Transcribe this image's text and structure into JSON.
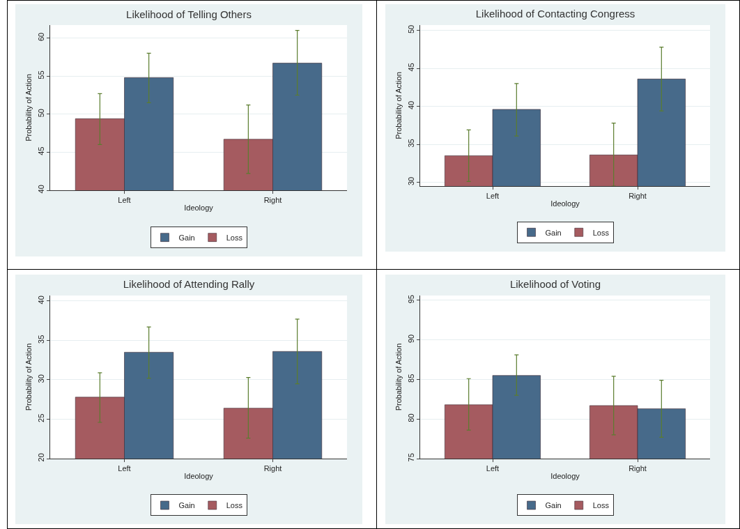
{
  "chart_data": [
    {
      "type": "bar",
      "title": "Likelihood of Telling Others",
      "xlabel": "Ideology",
      "ylabel": "Probability of Action",
      "categories": [
        "Left",
        "Right"
      ],
      "ylim": [
        40,
        61.7
      ],
      "yticks": [
        40,
        45,
        50,
        55,
        60
      ],
      "grid": "y",
      "legend": "bottom",
      "series": [
        {
          "name": "Loss",
          "color": "#a55b60",
          "values": [
            49.4,
            46.7
          ],
          "errors": [
            [
              46.0,
              52.7
            ],
            [
              42.2,
              51.2
            ]
          ]
        },
        {
          "name": "Gain",
          "color": "#476a8a",
          "values": [
            54.8,
            56.7
          ],
          "errors": [
            [
              51.5,
              58.0
            ],
            [
              52.5,
              61.0
            ]
          ]
        }
      ]
    },
    {
      "type": "bar",
      "title": "Likelihood of Contacting Congress",
      "xlabel": "Ideology",
      "ylabel": "Probability of Action",
      "categories": [
        "Left",
        "Right"
      ],
      "ylim": [
        29.5,
        50.7
      ],
      "yticks": [
        30,
        35,
        40,
        45,
        50
      ],
      "grid": "y",
      "legend": "bottom",
      "series": [
        {
          "name": "Loss",
          "color": "#a55b60",
          "values": [
            33.5,
            33.6
          ],
          "errors": [
            [
              30.1,
              36.9
            ],
            [
              29.5,
              37.8
            ]
          ]
        },
        {
          "name": "Gain",
          "color": "#476a8a",
          "values": [
            39.6,
            43.6
          ],
          "errors": [
            [
              36.1,
              43.0
            ],
            [
              39.4,
              47.8
            ]
          ]
        }
      ]
    },
    {
      "type": "bar",
      "title": "Likelihood of Attending Rally",
      "xlabel": "Ideology",
      "ylabel": "Probability of Action",
      "categories": [
        "Left",
        "Right"
      ],
      "ylim": [
        20,
        40.7
      ],
      "yticks": [
        20,
        25,
        30,
        35,
        40
      ],
      "grid": "y",
      "legend": "bottom",
      "series": [
        {
          "name": "Loss",
          "color": "#a55b60",
          "values": [
            27.8,
            26.4
          ],
          "errors": [
            [
              24.6,
              30.9
            ],
            [
              22.6,
              30.3
            ]
          ]
        },
        {
          "name": "Gain",
          "color": "#476a8a",
          "values": [
            33.5,
            33.6
          ],
          "errors": [
            [
              30.2,
              36.7
            ],
            [
              29.5,
              37.7
            ]
          ]
        }
      ]
    },
    {
      "type": "bar",
      "title": "Likelihood of Voting",
      "xlabel": "Ideology",
      "ylabel": "Probability of Action",
      "categories": [
        "Left",
        "Right"
      ],
      "ylim": [
        75,
        95.6
      ],
      "yticks": [
        75,
        80,
        85,
        90,
        95
      ],
      "grid": "y",
      "legend": "bottom",
      "series": [
        {
          "name": "Loss",
          "color": "#a55b60",
          "values": [
            81.8,
            81.7
          ],
          "errors": [
            [
              78.6,
              85.1
            ],
            [
              78.0,
              85.4
            ]
          ]
        },
        {
          "name": "Gain",
          "color": "#476a8a",
          "values": [
            85.5,
            81.3
          ],
          "errors": [
            [
              83.0,
              88.1
            ],
            [
              77.7,
              84.9
            ]
          ]
        }
      ]
    }
  ]
}
